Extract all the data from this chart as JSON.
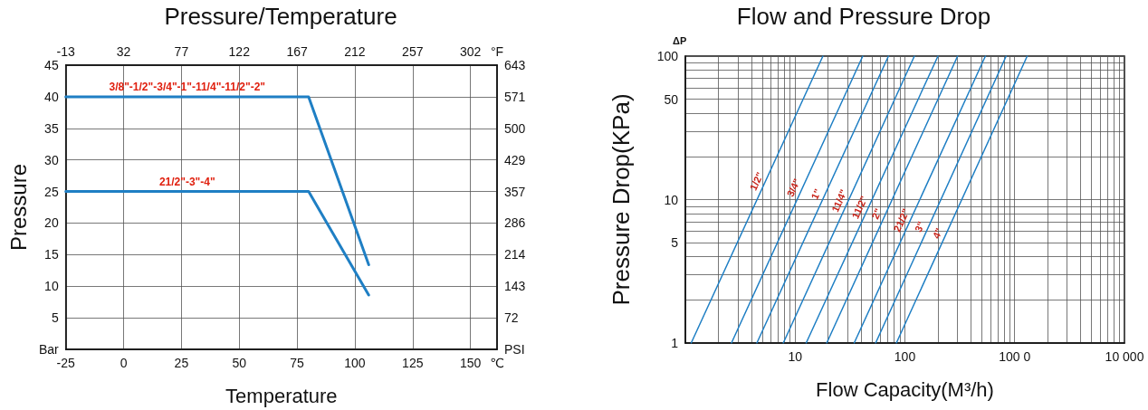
{
  "chart_data": [
    {
      "type": "line",
      "title": "Pressure/Temperature",
      "xlabel": "Temperature",
      "ylabel": "Pressure",
      "xlim": [
        -25,
        161.5
      ],
      "xticks": [
        -25,
        0,
        25,
        50,
        75,
        100,
        125,
        150,
        {
          "value": 161.5,
          "label": "℃"
        }
      ],
      "x2lim": [
        -13,
        322.7
      ],
      "x2ticks": [
        -13,
        32,
        77,
        122,
        167,
        212,
        257,
        302,
        {
          "value": 322.7,
          "label": "°F"
        }
      ],
      "ylim": [
        0,
        45
      ],
      "yticks": [
        {
          "value": 0,
          "label": "Bar"
        },
        5,
        10,
        15,
        20,
        25,
        30,
        35,
        40,
        45
      ],
      "y2lim": [
        0,
        643
      ],
      "y2ticks": [
        {
          "value": 0,
          "label": "PSI"
        },
        72,
        143,
        214,
        286,
        357,
        429,
        500,
        571,
        643
      ],
      "grid": true,
      "marker": "none",
      "line_style": "solid",
      "series": [
        {
          "name": "3/8\"-1/2\"-3/4\"-1\"-11/4\"-11/2\"-2\"",
          "color": "#1f7fc4",
          "x": [
            -25,
            80,
            106
          ],
          "values": [
            40,
            40,
            13.4
          ]
        },
        {
          "name": "21/2\"-3\"-4\"",
          "color": "#1f7fc4",
          "x": [
            -25,
            80,
            106
          ],
          "values": [
            25,
            25,
            8.6
          ]
        }
      ]
    },
    {
      "type": "line",
      "title": "Flow and Pressure Drop",
      "xlabel": "Flow Capacity(M³/h)",
      "ylabel": "Pressure Drop(KPa)",
      "annotations": [
        "ΔP"
      ],
      "log": "xy",
      "xlim": [
        1,
        10000
      ],
      "xticks": [
        {
          "value": 2,
          "label": null
        },
        {
          "value": 3,
          "label": null
        },
        {
          "value": 4,
          "label": null
        },
        {
          "value": 5,
          "label": null
        },
        {
          "value": 6,
          "label": null
        },
        {
          "value": 7,
          "label": null
        },
        {
          "value": 8,
          "label": null
        },
        {
          "value": 9,
          "label": null
        },
        10,
        {
          "value": 20,
          "label": null
        },
        {
          "value": 30,
          "label": null
        },
        {
          "value": 40,
          "label": null
        },
        {
          "value": 50,
          "label": null
        },
        {
          "value": 60,
          "label": null
        },
        {
          "value": 70,
          "label": null
        },
        {
          "value": 80,
          "label": null
        },
        {
          "value": 90,
          "label": null
        },
        100,
        {
          "value": 200,
          "label": null
        },
        {
          "value": 300,
          "label": null
        },
        {
          "value": 400,
          "label": null
        },
        {
          "value": 500,
          "label": null
        },
        {
          "value": 600,
          "label": null
        },
        {
          "value": 700,
          "label": null
        },
        {
          "value": 800,
          "label": null
        },
        {
          "value": 900,
          "label": null
        },
        {
          "value": 1000,
          "label": "100 0"
        },
        {
          "value": 2000,
          "label": null
        },
        {
          "value": 3000,
          "label": null
        },
        {
          "value": 4000,
          "label": null
        },
        {
          "value": 5000,
          "label": null
        },
        {
          "value": 6000,
          "label": null
        },
        {
          "value": 7000,
          "label": null
        },
        {
          "value": 8000,
          "label": null
        },
        {
          "value": 9000,
          "label": null
        },
        {
          "value": 10000,
          "label": "10 000"
        }
      ],
      "ylim": [
        1,
        100
      ],
      "yticks": [
        1,
        {
          "value": 2,
          "label": null
        },
        {
          "value": 3,
          "label": null
        },
        {
          "value": 4,
          "label": null
        },
        5,
        {
          "value": 6,
          "label": null
        },
        {
          "value": 7,
          "label": null
        },
        {
          "value": 8,
          "label": null
        },
        {
          "value": 9,
          "label": null
        },
        10,
        {
          "value": 20,
          "label": null
        },
        {
          "value": 30,
          "label": null
        },
        {
          "value": 40,
          "label": null
        },
        50,
        {
          "value": 60,
          "label": null
        },
        {
          "value": 70,
          "label": null
        },
        {
          "value": 80,
          "label": null
        },
        {
          "value": 90,
          "label": null
        },
        100
      ],
      "grid": true,
      "marker": "none",
      "line_style": "solid",
      "series": [
        {
          "name": "1/2\"",
          "color": "#1f7fc4",
          "x": [
            1.13,
            17.9
          ],
          "values": [
            1,
            100
          ]
        },
        {
          "name": "3/4\"",
          "color": "#1f7fc4",
          "x": [
            2.63,
            41.3
          ],
          "values": [
            1,
            100
          ]
        },
        {
          "name": "1\"",
          "color": "#1f7fc4",
          "x": [
            4.48,
            70.8
          ],
          "values": [
            1,
            100
          ]
        },
        {
          "name": "11/4\"",
          "color": "#1f7fc4",
          "x": [
            7.8,
            122
          ],
          "values": [
            1,
            100
          ]
        },
        {
          "name": "11/2\"",
          "color": "#1f7fc4",
          "x": [
            12.6,
            200
          ],
          "values": [
            1,
            100
          ]
        },
        {
          "name": "2\"",
          "color": "#1f7fc4",
          "x": [
            19.4,
            302
          ],
          "values": [
            1,
            100
          ]
        },
        {
          "name": "21/2\"",
          "color": "#1f7fc4",
          "x": [
            34.5,
            541
          ],
          "values": [
            1,
            100
          ]
        },
        {
          "name": "3\"",
          "color": "#1f7fc4",
          "x": [
            54.1,
            836
          ],
          "values": [
            1,
            100
          ]
        },
        {
          "name": "4\"",
          "color": "#1f7fc4",
          "x": [
            83.6,
            1300
          ],
          "values": [
            1,
            100
          ]
        }
      ]
    }
  ]
}
